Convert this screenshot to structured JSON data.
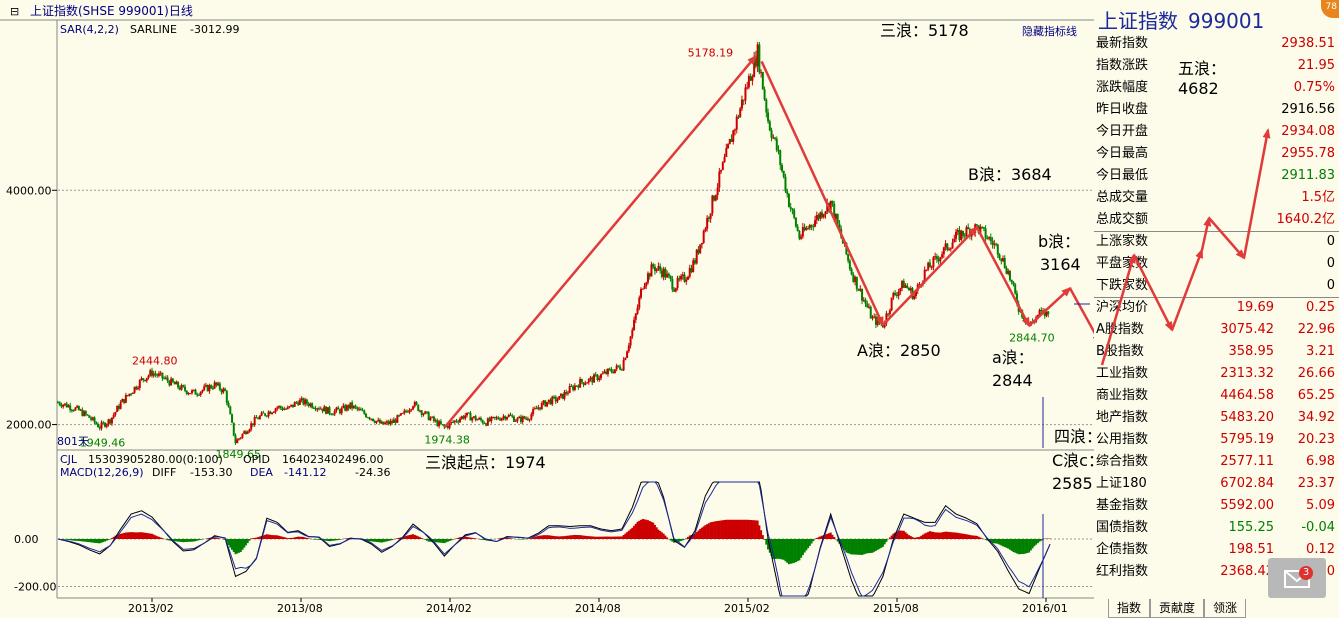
{
  "header": {
    "title": "上证指数(SHSE 999001)日线",
    "sar_label": "SAR(4,2,2)",
    "sarline_label": "SARLINE",
    "sarline_value": "-3012.99",
    "hide_lines_button": "隐藏指标线",
    "days_label": "801天"
  },
  "annotations": {
    "wave3_peak": "三浪：5178",
    "wave_A": "A浪：2850",
    "wave_B": "B浪：3684",
    "wave_b_label": "b浪：",
    "wave_b_value": "3164",
    "wave_a_label": "a浪：",
    "wave_a_value": "2844",
    "wave3_start": "三浪起点：1974",
    "wave4": "四浪：",
    "wave_C": "C浪c：",
    "wave_C_value": "2585",
    "wave5_label": "五浪：",
    "wave5_value": "4682"
  },
  "chart_data": [
    {
      "type": "line",
      "panel": "price",
      "ylim": [
        1800,
        5300
      ],
      "y_ticks": [
        2000,
        4000
      ],
      "y_tick_labels": [
        "2000.00",
        "4000.00"
      ],
      "x_tick_labels": [
        "2013/02",
        "2013/08",
        "2014/02",
        "2014/08",
        "2015/02",
        "2015/08",
        "2016/01"
      ],
      "series": [
        {
          "values": [
            2190,
            2160,
            2120,
            2060,
            1980,
            2040,
            2180,
            2280,
            2380,
            2444,
            2400,
            2350,
            2300,
            2270,
            2300,
            2340,
            2280,
            1850,
            1950,
            2050,
            2100,
            2150,
            2130,
            2200,
            2180,
            2150,
            2110,
            2120,
            2160,
            2110,
            2060,
            2000,
            2020,
            2080,
            2180,
            2100,
            2030,
            1974,
            2030,
            2080,
            2050,
            2020,
            2050,
            2080,
            2040,
            2060,
            2150,
            2200,
            2220,
            2300,
            2360,
            2380,
            2420,
            2460,
            2500,
            2800,
            3200,
            3350,
            3300,
            3180,
            3250,
            3400,
            3700,
            4000,
            4300,
            4600,
            4900,
            5178,
            4600,
            4300,
            3900,
            3600,
            3700,
            3800,
            3900,
            3600,
            3300,
            3100,
            2900,
            2850,
            3100,
            3200,
            3100,
            3300,
            3400,
            3500,
            3600,
            3650,
            3684,
            3600,
            3500,
            3300,
            3000,
            2844,
            2950,
            2938
          ]
        }
      ],
      "point_labels": [
        {
          "text": "2444.80",
          "value": 2444.8,
          "index": 9
        },
        {
          "text": "1949.46",
          "value": 1949.46,
          "index": 4
        },
        {
          "text": "1849.65",
          "value": 1849.65,
          "index": 17
        },
        {
          "text": "1974.38",
          "value": 1974.38,
          "index": 37
        },
        {
          "text": "5178.19",
          "value": 5178.19,
          "index": 67
        },
        {
          "text": "2844.70",
          "value": 2844.7,
          "index": 93
        }
      ]
    },
    {
      "type": "bar",
      "panel": "macd",
      "indicator": "MACD(12,26,9)",
      "cjl_label": "CJL",
      "cjl_value": "15303905280.00(0:100)",
      "opid_label": "OPID",
      "opid_value": "164023402496.00",
      "diff_label": "DIFF",
      "diff_value": "-153.30",
      "dea_label": "DEA",
      "dea_value": "-141.12",
      "macd_value": "-24.36",
      "y_ticks": [
        0,
        -200
      ],
      "y_tick_labels": [
        "0.00",
        "-200.00"
      ],
      "ylim": [
        -240,
        240
      ]
    }
  ],
  "quote_panel": {
    "name": "上证指数",
    "code": "999001",
    "rows": [
      {
        "label": "最新指数",
        "v2": "2938.51",
        "c2": "red"
      },
      {
        "label": "指数涨跌",
        "v2": "21.95",
        "c2": "red"
      },
      {
        "label": "涨跌幅度",
        "v2": "0.75%",
        "c2": "red"
      },
      {
        "label": "昨日收盘",
        "v2": "2916.56",
        "c2": "black"
      },
      {
        "label": "今日开盘",
        "v2": "2934.08",
        "c2": "red"
      },
      {
        "label": "今日最高",
        "v2": "2955.78",
        "c2": "red"
      },
      {
        "label": "今日最低",
        "v2": "2911.83",
        "c2": "green"
      },
      {
        "label": "总成交量",
        "v2": "1.5亿",
        "c2": "red"
      },
      {
        "label": "总成交额",
        "v2": "1640.2亿",
        "c2": "red"
      },
      {
        "label": "上涨家数",
        "v2": "0",
        "c2": "black"
      },
      {
        "label": "平盘家数",
        "v2": "0",
        "c2": "black"
      },
      {
        "label": "下跌家数",
        "v2": "0",
        "c2": "black"
      },
      {
        "label": "沪深均价",
        "v1": "19.69",
        "c1": "red",
        "v2": "0.25",
        "c2": "red"
      },
      {
        "label": "A股指数",
        "v1": "3075.42",
        "c1": "red",
        "v2": "22.96",
        "c2": "red"
      },
      {
        "label": "B股指数",
        "v1": "358.95",
        "c1": "red",
        "v2": "3.21",
        "c2": "red"
      },
      {
        "label": "工业指数",
        "v1": "2313.32",
        "c1": "red",
        "v2": "26.66",
        "c2": "red"
      },
      {
        "label": "商业指数",
        "v1": "4464.58",
        "c1": "red",
        "v2": "65.25",
        "c2": "red"
      },
      {
        "label": "地产指数",
        "v1": "5483.20",
        "c1": "red",
        "v2": "34.92",
        "c2": "red"
      },
      {
        "label": "公用指数",
        "v1": "5795.19",
        "c1": "red",
        "v2": "20.23",
        "c2": "red"
      },
      {
        "label": "综合指数",
        "v1": "2577.11",
        "c1": "red",
        "v2": "6.98",
        "c2": "red"
      },
      {
        "label": "上证180",
        "v1": "6702.84",
        "c1": "red",
        "v2": "23.37",
        "c2": "red"
      },
      {
        "label": "基金指数",
        "v1": "5592.00",
        "c1": "red",
        "v2": "5.09",
        "c2": "red"
      },
      {
        "label": "国债指数",
        "v1": "155.25",
        "c1": "green",
        "v2": "-0.04",
        "c2": "green"
      },
      {
        "label": "企债指数",
        "v1": "198.51",
        "c1": "red",
        "v2": "0.12",
        "c2": "red"
      },
      {
        "label": "红利指数",
        "v1": "2368.42",
        "c1": "red",
        "v2": "10",
        "c2": "red"
      }
    ]
  },
  "tabs": [
    {
      "label": "指数"
    },
    {
      "label": "贡献度"
    },
    {
      "label": "领涨"
    }
  ],
  "badges": {
    "mail_count": "3",
    "corner": "78"
  },
  "colors": {
    "up": "#cc0000",
    "down": "#008000",
    "arrow": "#e03a3a",
    "diff_line": "#000000",
    "dea_line": "#1b2a9a"
  }
}
